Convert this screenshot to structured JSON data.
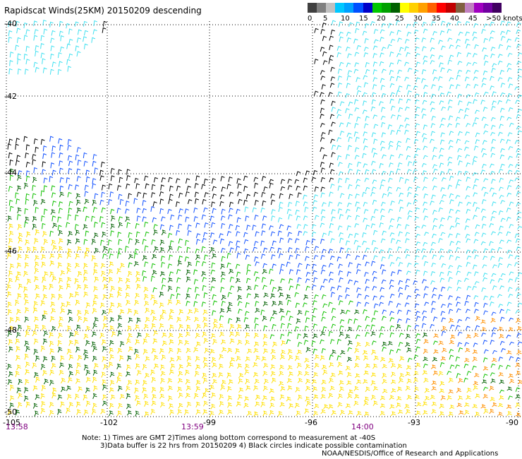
{
  "title": "Rapidscat Winds(25KM) 20150209 descending",
  "legend": {
    "colors": [
      "#404040",
      "#808080",
      "#c0c0c0",
      "#00c8ff",
      "#00a0ff",
      "#0050ff",
      "#0000c8",
      "#00c800",
      "#00a000",
      "#006000",
      "#ffff00",
      "#ffd000",
      "#ffa000",
      "#ff6000",
      "#ff0000",
      "#c00000",
      "#806040",
      "#c080c0",
      "#a000c0",
      "#7000a0",
      "#400060"
    ],
    "labels": [
      "0",
      "5",
      "10",
      "15",
      "20",
      "25",
      "30",
      "35",
      "40",
      "45",
      ">50 knots"
    ]
  },
  "axes": {
    "lat_labels": [
      "-40",
      "-42",
      "-44",
      "-46",
      "-48",
      "-50"
    ],
    "lon_labels": [
      "-105",
      "-102",
      "-99",
      "-96",
      "-93",
      "-90"
    ],
    "time_labels": [
      "13:58",
      "13:59",
      "14:00"
    ]
  },
  "notes": {
    "line1": "Note: 1) Times are GMT 2)Times along bottom correspond to measurement at -40S",
    "line2": "3)Data buffer is 22 hrs from 20150209 4) Black circles indicate possible contamination",
    "credit": "NOAA/NESDIS/Office of Research and Applications"
  },
  "colors": {
    "calm": "#000000",
    "light": "#40e0f0",
    "blue": "#1050ff",
    "green": "#10c000",
    "darkgreen": "#006000",
    "yellow": "#ffe000",
    "orange": "#ff9000",
    "grid": "#000000"
  }
}
